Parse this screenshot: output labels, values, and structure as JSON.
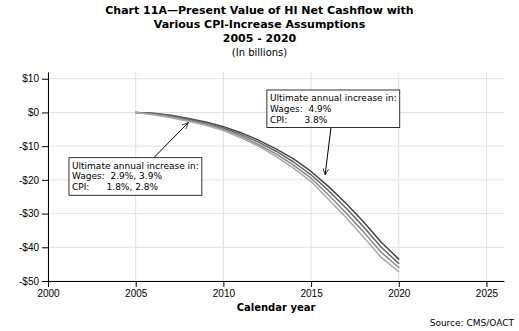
{
  "chart_data": {
    "type": "line",
    "title": [
      "Chart 11A—Present Value of HI Net Cashflow with",
      "Various CPI-Increase Assumptions",
      "2005 - 2020"
    ],
    "subtitle": "(In billions)",
    "xlabel": "Calendar year",
    "source": "Source: CMS/OACT",
    "x": [
      2005,
      2006,
      2007,
      2008,
      2009,
      2010,
      2011,
      2012,
      2013,
      2014,
      2015,
      2016,
      2017,
      2018,
      2019,
      2020
    ],
    "xlim": [
      2000,
      2026
    ],
    "xticks": [
      2000,
      2005,
      2010,
      2015,
      2020,
      2025
    ],
    "ylim": [
      -50,
      12
    ],
    "yticks": [
      {
        "value": 10,
        "label": "$10"
      },
      {
        "value": 0,
        "label": "$0"
      },
      {
        "value": -10,
        "label": "-$10"
      },
      {
        "value": -20,
        "label": "-$20"
      },
      {
        "value": -30,
        "label": "-$30"
      },
      {
        "value": -40,
        "label": "-$40"
      },
      {
        "value": -50,
        "label": "-$50"
      }
    ],
    "grid": true,
    "series": [
      {
        "color": "#444444",
        "values": [
          0.0,
          -0.2,
          -0.8,
          -1.8,
          -2.8,
          -4.2,
          -6.0,
          -8.2,
          -10.8,
          -13.8,
          -17.5,
          -22.0,
          -27.0,
          -32.5,
          -38.5,
          -43.5
        ]
      },
      {
        "color": "#666666",
        "values": [
          0.0,
          -0.3,
          -1.0,
          -2.0,
          -3.1,
          -4.6,
          -6.5,
          -8.8,
          -11.5,
          -14.7,
          -18.5,
          -23.2,
          -28.4,
          -34.0,
          -40.0,
          -44.8
        ]
      },
      {
        "color": "#888888",
        "values": [
          0.0,
          -0.5,
          -1.3,
          -2.3,
          -3.4,
          -5.0,
          -7.0,
          -9.5,
          -12.3,
          -15.6,
          -19.5,
          -24.5,
          -29.8,
          -35.5,
          -41.5,
          -46.0
        ]
      },
      {
        "color": "#aaaaaa",
        "values": [
          0.0,
          -0.7,
          -1.6,
          -2.6,
          -3.8,
          -5.4,
          -7.5,
          -10.0,
          -13.0,
          -16.5,
          -20.5,
          -25.8,
          -31.2,
          -37.0,
          -43.0,
          -47.2
        ]
      }
    ],
    "annotations": [
      {
        "text": [
          "Ultimate annual increase in:",
          "Wages:  2.9%, 3.9%",
          "CPI:      1.8%, 2.8%"
        ],
        "x": 2008.0,
        "y": -3.0
      },
      {
        "text": [
          "Ultimate annual increase in:",
          "Wages:  4.9%",
          "CPI:      3.8%"
        ],
        "x": 2015.8,
        "y": -18.5
      }
    ]
  }
}
